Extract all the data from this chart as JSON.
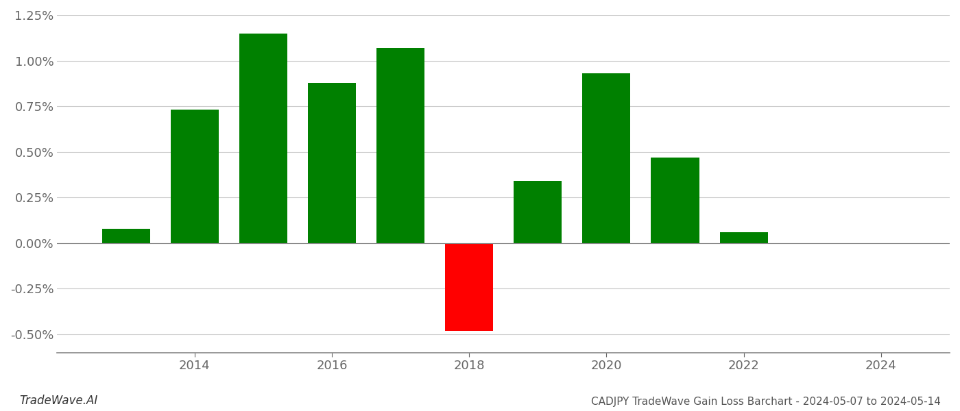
{
  "years": [
    2013,
    2014,
    2015,
    2016,
    2017,
    2018,
    2019,
    2020,
    2021,
    2022,
    2023
  ],
  "values": [
    0.0008,
    0.0073,
    0.0115,
    0.0088,
    0.0107,
    -0.0048,
    0.0034,
    0.0093,
    0.0047,
    0.0006,
    0.0
  ],
  "colors": [
    "#008000",
    "#008000",
    "#008000",
    "#008000",
    "#008000",
    "#ff0000",
    "#008000",
    "#008000",
    "#008000",
    "#008000",
    "#008000"
  ],
  "ylim_min": -0.006,
  "ylim_max": 0.0125,
  "background_color": "#ffffff",
  "grid_color": "#cccccc",
  "title": "CADJPY TradeWave Gain Loss Barchart - 2024-05-07 to 2024-05-14",
  "footer_left": "TradeWave.AI",
  "bar_width": 0.7,
  "xticks": [
    2014,
    2016,
    2018,
    2020,
    2022,
    2024
  ],
  "xlim_min": 2012.0,
  "xlim_max": 2025.0,
  "yticks": [
    -0.005,
    -0.0025,
    0.0,
    0.0025,
    0.005,
    0.0075,
    0.01,
    0.0125
  ]
}
